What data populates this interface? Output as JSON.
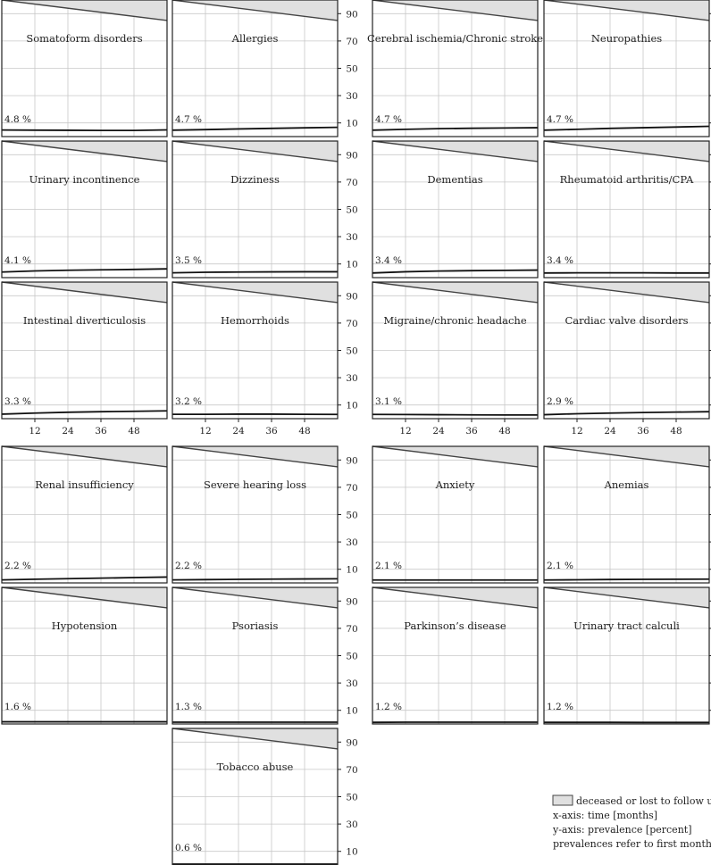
{
  "chart_data": {
    "type": "line",
    "x_axis": {
      "label": "x-axis: time [months]",
      "ticks": [
        12,
        24,
        36,
        48
      ],
      "range": [
        0,
        60
      ]
    },
    "y_axis": {
      "label": "y-axis: prevalence [percent]",
      "ticks": [
        10,
        30,
        50,
        70,
        90
      ],
      "range": [
        0,
        100
      ]
    },
    "grid": true,
    "legend": {
      "position": "bottom-right",
      "items": [
        "deceased or lost to follow up"
      ],
      "notes": [
        "x-axis: time [months]",
        "y-axis: prevalence [percent]",
        "prevalences refer to first month"
      ]
    },
    "survival": {
      "x": [
        0,
        60
      ],
      "y": [
        100,
        85
      ]
    },
    "panels": [
      {
        "title": "Somatoform disorders",
        "prevalence_label": "4.8 %",
        "prevalence": [
          4.8,
          4.7,
          4.6,
          4.5,
          4.5,
          4.9
        ]
      },
      {
        "title": "Allergies",
        "prevalence_label": "4.7 %",
        "prevalence": [
          4.7,
          5.1,
          5.6,
          6.0,
          6.4,
          6.8
        ]
      },
      {
        "title": "Cerebral ischemia/Chronic stroke",
        "prevalence_label": "4.7 %",
        "prevalence": [
          4.7,
          5.3,
          5.8,
          6.1,
          6.3,
          6.5
        ]
      },
      {
        "title": "Neuropathies",
        "prevalence_label": "4.7 %",
        "prevalence": [
          4.7,
          5.3,
          6.0,
          6.5,
          7.0,
          7.5
        ]
      },
      {
        "title": "Urinary incontinence",
        "prevalence_label": "4.1 %",
        "prevalence": [
          4.1,
          4.9,
          5.4,
          5.7,
          6.0,
          6.4
        ]
      },
      {
        "title": "Dizziness",
        "prevalence_label": "3.5 %",
        "prevalence": [
          3.5,
          3.9,
          4.1,
          4.2,
          4.3,
          4.3
        ]
      },
      {
        "title": "Dementias",
        "prevalence_label": "3.4 %",
        "prevalence": [
          3.4,
          4.3,
          4.8,
          5.1,
          5.3,
          5.5
        ]
      },
      {
        "title": "Rheumatoid arthritis/CPA",
        "prevalence_label": "3.4 %",
        "prevalence": [
          3.4,
          3.5,
          3.5,
          3.5,
          3.4,
          3.4
        ]
      },
      {
        "title": "Intestinal diverticulosis",
        "prevalence_label": "3.3 %",
        "prevalence": [
          3.3,
          4.1,
          4.7,
          5.1,
          5.4,
          5.7
        ]
      },
      {
        "title": "Hemorrhoids",
        "prevalence_label": "3.2 %",
        "prevalence": [
          3.2,
          3.2,
          3.3,
          3.3,
          3.2,
          3.1
        ]
      },
      {
        "title": "Migraine/chronic headache",
        "prevalence_label": "3.1 %",
        "prevalence": [
          3.1,
          3.0,
          2.9,
          2.8,
          2.7,
          2.7
        ]
      },
      {
        "title": "Cardiac valve disorders",
        "prevalence_label": "2.9 %",
        "prevalence": [
          2.9,
          3.6,
          4.1,
          4.5,
          4.8,
          5.1
        ]
      },
      {
        "title": "Renal insufficiency",
        "prevalence_label": "2.2 %",
        "prevalence": [
          2.2,
          2.7,
          3.1,
          3.5,
          3.9,
          4.3
        ]
      },
      {
        "title": "Severe hearing loss",
        "prevalence_label": "2.2 %",
        "prevalence": [
          2.2,
          2.4,
          2.6,
          2.8,
          2.9,
          3.0
        ]
      },
      {
        "title": "Anxiety",
        "prevalence_label": "2.1 %",
        "prevalence": [
          2.1,
          2.1,
          2.1,
          2.1,
          2.1,
          2.1
        ]
      },
      {
        "title": "Anemias",
        "prevalence_label": "2.1 %",
        "prevalence": [
          2.1,
          2.3,
          2.5,
          2.6,
          2.7,
          2.8
        ]
      },
      {
        "title": "Hypotension",
        "prevalence_label": "1.6 %",
        "prevalence": [
          1.6,
          1.6,
          1.6,
          1.6,
          1.6,
          1.6
        ]
      },
      {
        "title": "Psoriasis",
        "prevalence_label": "1.3 %",
        "prevalence": [
          1.3,
          1.3,
          1.3,
          1.3,
          1.3,
          1.3
        ]
      },
      {
        "title": "Parkinson’s disease",
        "prevalence_label": "1.2 %",
        "prevalence": [
          1.2,
          1.3,
          1.3,
          1.3,
          1.3,
          1.3
        ]
      },
      {
        "title": "Urinary tract calculi",
        "prevalence_label": "1.2 %",
        "prevalence": [
          1.2,
          1.2,
          1.2,
          1.1,
          1.1,
          1.1
        ]
      },
      {
        "title": "Tobacco abuse",
        "prevalence_label": "0.6 %",
        "prevalence": [
          0.6,
          0.6,
          0.6,
          0.6,
          0.6,
          0.6
        ]
      }
    ]
  }
}
